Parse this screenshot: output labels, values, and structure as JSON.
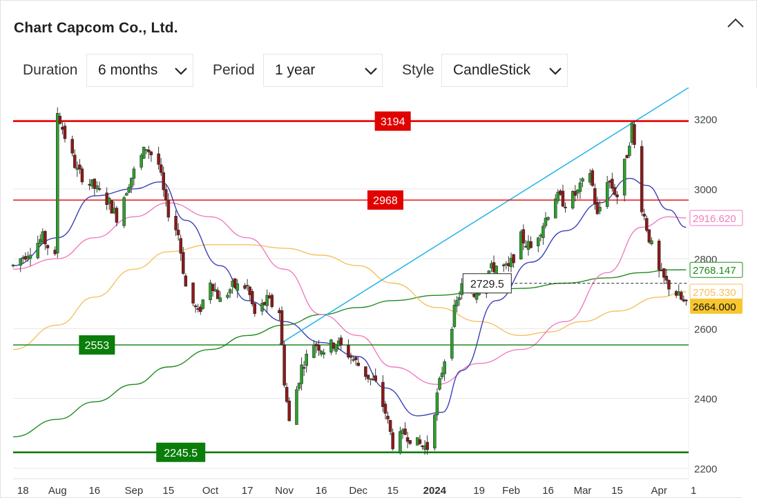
{
  "title": "Chart Capcom Co., Ltd.",
  "icons": {
    "collapse": "chevron-up-icon",
    "dropdown": "chevron-down-icon"
  },
  "controls": {
    "duration": {
      "label": "Duration",
      "value": "6 months"
    },
    "period": {
      "label": "Period",
      "value": "1 year"
    },
    "style": {
      "label": "Style",
      "value": "CandleStick"
    }
  },
  "colors": {
    "up": "#2e9e2e",
    "down": "#8b1a1a",
    "ma_short": "#3b3fb5",
    "ma_mid": "#f07cc0",
    "ma_long": "#f5c060",
    "ma_200": "#1f8a1f",
    "resistance": "#e00000",
    "support": "#0a7d0a",
    "trendline": "#29b6e8"
  },
  "chart_data": {
    "type": "candlestick",
    "y_ticks": [
      2200,
      2400,
      2600,
      2800,
      3000,
      3200
    ],
    "ylim": [
      2170,
      3290
    ],
    "x_ticks": [
      {
        "label": "18",
        "date": "2023-07-18"
      },
      {
        "label": "Aug",
        "date": "2023-08-01"
      },
      {
        "label": "16",
        "date": "2023-08-16"
      },
      {
        "label": "Sep",
        "date": "2023-09-01"
      },
      {
        "label": "15",
        "date": "2023-09-15"
      },
      {
        "label": "Oct",
        "date": "2023-10-02"
      },
      {
        "label": "17",
        "date": "2023-10-17"
      },
      {
        "label": "Nov",
        "date": "2023-11-01"
      },
      {
        "label": "16",
        "date": "2023-11-16"
      },
      {
        "label": "Dec",
        "date": "2023-12-01"
      },
      {
        "label": "15",
        "date": "2023-12-15"
      },
      {
        "label": "2024",
        "date": "2024-01-01"
      },
      {
        "label": "19",
        "date": "2024-01-19"
      },
      {
        "label": "Feb",
        "date": "2024-02-01"
      },
      {
        "label": "16",
        "date": "2024-02-16"
      },
      {
        "label": "Mar",
        "date": "2024-03-01"
      },
      {
        "label": "15",
        "date": "2024-03-15"
      },
      {
        "label": "Apr",
        "date": "2024-04-01"
      },
      {
        "label": "1",
        "date": "2024-04-15"
      }
    ],
    "x_range": [
      "2023-07-14",
      "2024-04-13"
    ],
    "price_path": [
      [
        "2023-07-14",
        2780
      ],
      [
        "2023-07-20",
        2820
      ],
      [
        "2023-07-26",
        2860
      ],
      [
        "2023-07-31",
        2800
      ],
      [
        "2023-08-01",
        3220
      ],
      [
        "2023-08-04",
        3150
      ],
      [
        "2023-08-09",
        3050
      ],
      [
        "2023-08-15",
        3010
      ],
      [
        "2023-08-22",
        2960
      ],
      [
        "2023-08-25",
        2920
      ],
      [
        "2023-08-30",
        3020
      ],
      [
        "2023-09-06",
        3120
      ],
      [
        "2023-09-11",
        3070
      ],
      [
        "2023-09-14",
        2950
      ],
      [
        "2023-09-19",
        2870
      ],
      [
        "2023-09-22",
        2720
      ],
      [
        "2023-09-27",
        2640
      ],
      [
        "2023-10-02",
        2740
      ],
      [
        "2023-10-06",
        2680
      ],
      [
        "2023-10-11",
        2720
      ],
      [
        "2023-10-17",
        2720
      ],
      [
        "2023-10-20",
        2640
      ],
      [
        "2023-10-25",
        2680
      ],
      [
        "2023-10-30",
        2650
      ],
      [
        "2023-11-01",
        2450
      ],
      [
        "2023-11-03",
        2330
      ],
      [
        "2023-11-08",
        2490
      ],
      [
        "2023-11-13",
        2560
      ],
      [
        "2023-11-17",
        2540
      ],
      [
        "2023-11-22",
        2560
      ],
      [
        "2023-11-28",
        2520
      ],
      [
        "2023-12-04",
        2470
      ],
      [
        "2023-12-08",
        2440
      ],
      [
        "2023-12-12",
        2360
      ],
      [
        "2023-12-15",
        2270
      ],
      [
        "2023-12-20",
        2300
      ],
      [
        "2023-12-25",
        2270
      ],
      [
        "2023-12-29",
        2260
      ],
      [
        "2024-01-04",
        2480
      ],
      [
        "2024-01-09",
        2650
      ],
      [
        "2024-01-12",
        2720
      ],
      [
        "2024-01-17",
        2700
      ],
      [
        "2024-01-22",
        2760
      ],
      [
        "2024-01-26",
        2780
      ],
      [
        "2024-01-31",
        2770
      ],
      [
        "2024-02-05",
        2860
      ],
      [
        "2024-02-09",
        2830
      ],
      [
        "2024-02-14",
        2900
      ],
      [
        "2024-02-19",
        2980
      ],
      [
        "2024-02-23",
        2960
      ],
      [
        "2024-02-28",
        2990
      ],
      [
        "2024-03-04",
        3050
      ],
      [
        "2024-03-07",
        2920
      ],
      [
        "2024-03-11",
        3030
      ],
      [
        "2024-03-15",
        2980
      ],
      [
        "2024-03-19",
        3100
      ],
      [
        "2024-03-21",
        3180
      ],
      [
        "2024-03-25",
        2950
      ],
      [
        "2024-03-28",
        2860
      ],
      [
        "2024-04-01",
        2760
      ],
      [
        "2024-04-04",
        2730
      ],
      [
        "2024-04-08",
        2700
      ],
      [
        "2024-04-12",
        2664
      ]
    ],
    "ma_short": [
      [
        "2023-07-14",
        2780
      ],
      [
        "2023-08-01",
        2860
      ],
      [
        "2023-08-16",
        2980
      ],
      [
        "2023-09-01",
        3000
      ],
      [
        "2023-09-12",
        3020
      ],
      [
        "2023-09-22",
        2910
      ],
      [
        "2023-10-06",
        2780
      ],
      [
        "2023-10-17",
        2680
      ],
      [
        "2023-11-01",
        2620
      ],
      [
        "2023-11-16",
        2560
      ],
      [
        "2023-12-01",
        2520
      ],
      [
        "2023-12-12",
        2430
      ],
      [
        "2023-12-25",
        2350
      ],
      [
        "2024-01-04",
        2360
      ],
      [
        "2024-01-12",
        2480
      ],
      [
        "2024-01-26",
        2680
      ],
      [
        "2024-02-09",
        2790
      ],
      [
        "2024-02-23",
        2880
      ],
      [
        "2024-03-08",
        2960
      ],
      [
        "2024-03-20",
        3030
      ],
      [
        "2024-03-27",
        3010
      ],
      [
        "2024-04-05",
        2940
      ],
      [
        "2024-04-12",
        2890
      ]
    ],
    "ma_mid": [
      [
        "2023-07-14",
        2770
      ],
      [
        "2023-08-01",
        2800
      ],
      [
        "2023-08-16",
        2860
      ],
      [
        "2023-09-01",
        2920
      ],
      [
        "2023-09-15",
        2960
      ],
      [
        "2023-10-02",
        2920
      ],
      [
        "2023-10-17",
        2860
      ],
      [
        "2023-11-01",
        2770
      ],
      [
        "2023-11-16",
        2640
      ],
      [
        "2023-12-01",
        2580
      ],
      [
        "2023-12-15",
        2490
      ],
      [
        "2024-01-02",
        2440
      ],
      [
        "2024-01-19",
        2500
      ],
      [
        "2024-02-05",
        2540
      ],
      [
        "2024-02-23",
        2620
      ],
      [
        "2024-03-11",
        2760
      ],
      [
        "2024-03-25",
        2890
      ],
      [
        "2024-04-05",
        2920
      ],
      [
        "2024-04-12",
        2916.62
      ]
    ],
    "ma_long": [
      [
        "2023-07-14",
        2540
      ],
      [
        "2023-08-01",
        2610
      ],
      [
        "2023-08-16",
        2690
      ],
      [
        "2023-09-01",
        2770
      ],
      [
        "2023-09-15",
        2820
      ],
      [
        "2023-10-02",
        2840
      ],
      [
        "2023-10-17",
        2840
      ],
      [
        "2023-11-01",
        2830
      ],
      [
        "2023-11-16",
        2810
      ],
      [
        "2023-12-01",
        2780
      ],
      [
        "2023-12-15",
        2730
      ],
      [
        "2024-01-02",
        2660
      ],
      [
        "2024-01-19",
        2620
      ],
      [
        "2024-02-05",
        2580
      ],
      [
        "2024-02-16",
        2590
      ],
      [
        "2024-03-01",
        2620
      ],
      [
        "2024-03-15",
        2650
      ],
      [
        "2024-04-01",
        2690
      ],
      [
        "2024-04-12",
        2705.33
      ]
    ],
    "ma_200": [
      [
        "2023-07-14",
        2290
      ],
      [
        "2023-08-01",
        2340
      ],
      [
        "2023-08-16",
        2390
      ],
      [
        "2023-09-01",
        2440
      ],
      [
        "2023-09-15",
        2490
      ],
      [
        "2023-10-02",
        2540
      ],
      [
        "2023-10-17",
        2580
      ],
      [
        "2023-11-01",
        2610
      ],
      [
        "2023-11-16",
        2640
      ],
      [
        "2023-12-01",
        2660
      ],
      [
        "2023-12-15",
        2680
      ],
      [
        "2024-01-02",
        2695
      ],
      [
        "2024-01-19",
        2705
      ],
      [
        "2024-02-05",
        2715
      ],
      [
        "2024-02-23",
        2730
      ],
      [
        "2024-03-11",
        2745
      ],
      [
        "2024-03-25",
        2760
      ],
      [
        "2024-04-05",
        2768
      ],
      [
        "2024-04-12",
        2768.147
      ]
    ],
    "trendline": {
      "from": [
        "2023-10-30",
        2555
      ],
      "to": [
        "2024-04-13",
        3290
      ]
    },
    "horizontal_lines": [
      {
        "label": "3194",
        "value": 3194,
        "kind": "resistance",
        "label_date": "2023-12-15"
      },
      {
        "label": "2968",
        "value": 2968,
        "kind": "resistance",
        "label_date": "2023-12-12"
      },
      {
        "label": "2553",
        "value": 2553,
        "kind": "support",
        "label_date": "2023-08-17"
      },
      {
        "label": "2245.5",
        "value": 2245.5,
        "kind": "support",
        "label_date": "2023-09-20"
      }
    ],
    "crosshair": {
      "label": "2729.5",
      "value": 2729.5,
      "label_date": "2024-01-22"
    },
    "right_labels": [
      {
        "text": "2916.620",
        "value": 2916.62,
        "kind": "ma_mid"
      },
      {
        "text": "2768.147",
        "value": 2768.147,
        "kind": "ma_200"
      },
      {
        "text": "2705.330",
        "value": 2705.33,
        "kind": "ma_long"
      },
      {
        "text": "2664.000",
        "value": 2664.0,
        "kind": "last_price"
      }
    ]
  }
}
